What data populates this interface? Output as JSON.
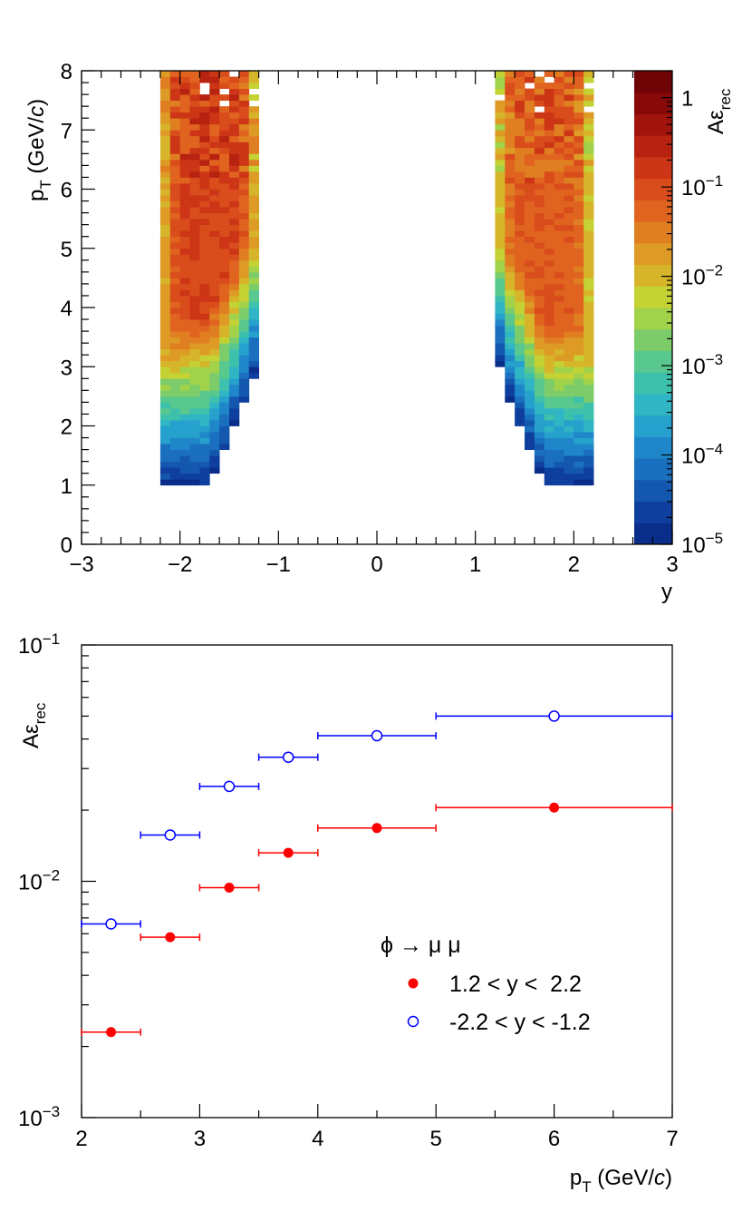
{
  "chart_data": [
    {
      "type": "heatmap",
      "x_axis": {
        "label": "y",
        "range": [
          -3,
          3
        ],
        "ticks": [
          "−3",
          "−2",
          "−1",
          "0",
          "1",
          "2",
          "3"
        ]
      },
      "y_axis": {
        "label": "p",
        "label_sub": "T",
        "label_suffix": " (GeV/",
        "label_italic": "c",
        "label_close": ")",
        "range": [
          0,
          8
        ],
        "ticks": [
          "0",
          "1",
          "2",
          "3",
          "4",
          "5",
          "6",
          "7",
          "8"
        ]
      },
      "z_axis": {
        "label": "Aε",
        "label_sub": "rec",
        "scale": "log",
        "range": [
          1e-05,
          2
        ],
        "ticks": [
          {
            "base": "10",
            "exp": "−5",
            "value": 1e-05
          },
          {
            "base": "10",
            "exp": "−4",
            "value": 0.0001
          },
          {
            "base": "10",
            "exp": "−3",
            "value": 0.001
          },
          {
            "base": "10",
            "exp": "−2",
            "value": 0.01
          },
          {
            "base": "10",
            "exp": "−1",
            "value": 0.1
          },
          {
            "base": "1",
            "exp": "",
            "value": 1
          }
        ]
      },
      "bins": {
        "y_width": 0.1,
        "pt_width": 0.1
      },
      "regions": [
        {
          "y_range": [
            -2.2,
            -1.2
          ],
          "mirror": false
        },
        {
          "y_range": [
            1.2,
            2.2
          ],
          "mirror": true
        }
      ],
      "palette": [
        "#0a2d8a",
        "#0f3f9e",
        "#1457ae",
        "#1a6fbf",
        "#1f87c9",
        "#26a0cc",
        "#2fb5c4",
        "#3ec1ac",
        "#58c88e",
        "#7ccd6a",
        "#a1d24a",
        "#c4d233",
        "#d7b52a",
        "#dd9a25",
        "#e07f22",
        "#e0641f",
        "#d94c1b",
        "#cc3516",
        "#b82211",
        "#a1140d",
        "#87090a",
        "#6e0406"
      ]
    },
    {
      "type": "scatter",
      "x_axis": {
        "label": "p",
        "label_sub": "T",
        "label_suffix": " (GeV/",
        "label_italic": "c",
        "label_close": ")",
        "range": [
          2,
          7
        ],
        "ticks": [
          "2",
          "3",
          "4",
          "5",
          "6",
          "7"
        ]
      },
      "y_axis": {
        "label": "Aε",
        "label_sub": "rec",
        "scale": "log",
        "range": [
          0.001,
          0.1
        ],
        "ticks": [
          {
            "base": "10",
            "exp": "−3",
            "value": 0.001
          },
          {
            "base": "10",
            "exp": "−2",
            "value": 0.01
          },
          {
            "base": "10",
            "exp": "−1",
            "value": 0.1
          }
        ]
      },
      "legend": {
        "title": "ϕ → μ μ",
        "placement": "lower-right"
      },
      "series": [
        {
          "name": "1.2 < y <  2.2",
          "marker": "filled-circle",
          "color": "#ff0000",
          "x": [
            2.25,
            2.75,
            3.25,
            3.75,
            4.5,
            6.0
          ],
          "x_err": [
            [
              2.0,
              2.5
            ],
            [
              2.5,
              3.0
            ],
            [
              3.0,
              3.5
            ],
            [
              3.5,
              4.0
            ],
            [
              4.0,
              5.0
            ],
            [
              5.0,
              7.0
            ]
          ],
          "y": [
            0.0023,
            0.0058,
            0.0094,
            0.0132,
            0.0168,
            0.0205
          ]
        },
        {
          "name": "-2.2 < y < -1.2",
          "marker": "open-circle",
          "color": "#0000ff",
          "x": [
            2.25,
            2.75,
            3.25,
            3.75,
            4.5,
            6.0
          ],
          "x_err": [
            [
              2.0,
              2.5
            ],
            [
              2.5,
              3.0
            ],
            [
              3.0,
              3.5
            ],
            [
              3.5,
              4.0
            ],
            [
              4.0,
              5.0
            ],
            [
              5.0,
              7.0
            ]
          ],
          "y": [
            0.0066,
            0.0157,
            0.0252,
            0.0335,
            0.0413,
            0.05
          ]
        }
      ]
    }
  ]
}
